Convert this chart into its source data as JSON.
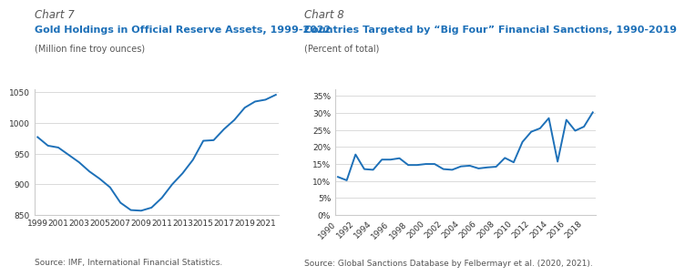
{
  "chart7": {
    "title_label": "Chart 7",
    "title": "Gold Holdings in Official Reserve Assets, 1999-2022",
    "subtitle": "(Million fine troy ounces)",
    "source": "Source: IMF, International Financial Statistics.",
    "line_color": "#1d70b8",
    "years": [
      1999,
      2000,
      2001,
      2002,
      2003,
      2004,
      2005,
      2006,
      2007,
      2008,
      2009,
      2010,
      2011,
      2012,
      2013,
      2014,
      2015,
      2016,
      2017,
      2018,
      2019,
      2020,
      2021,
      2022
    ],
    "values": [
      977,
      963,
      960,
      948,
      936,
      921,
      909,
      895,
      870,
      858,
      857,
      862,
      878,
      900,
      918,
      940,
      971,
      972,
      990,
      1005,
      1025,
      1035,
      1038,
      1046
    ],
    "ylim": [
      850,
      1055
    ],
    "yticks": [
      850,
      900,
      950,
      1000,
      1050
    ],
    "xtick_years": [
      1999,
      2001,
      2003,
      2005,
      2007,
      2009,
      2011,
      2013,
      2015,
      2017,
      2019,
      2021
    ]
  },
  "chart8": {
    "title_label": "Chart 8",
    "title": "Countries Targeted by “Big Four” Financial Sanctions, 1990-2019",
    "subtitle": "(Percent of total)",
    "source": "Source: Global Sanctions Database by Felbermayr et al. (2020, 2021).",
    "line_color": "#1d70b8",
    "years": [
      1990,
      1991,
      1992,
      1993,
      1994,
      1995,
      1996,
      1997,
      1998,
      1999,
      2000,
      2001,
      2002,
      2003,
      2004,
      2005,
      2006,
      2007,
      2008,
      2009,
      2010,
      2011,
      2012,
      2013,
      2014,
      2015,
      2016,
      2017,
      2018,
      2019
    ],
    "values": [
      0.112,
      0.102,
      0.178,
      0.135,
      0.133,
      0.163,
      0.163,
      0.167,
      0.147,
      0.147,
      0.15,
      0.15,
      0.135,
      0.133,
      0.143,
      0.145,
      0.137,
      0.14,
      0.142,
      0.168,
      0.155,
      0.215,
      0.245,
      0.255,
      0.285,
      0.157,
      0.28,
      0.248,
      0.26,
      0.302
    ],
    "ylim": [
      0,
      0.37
    ],
    "yticks": [
      0.0,
      0.05,
      0.1,
      0.15,
      0.2,
      0.25,
      0.3,
      0.35
    ],
    "ytick_labels": [
      "0%",
      "5%",
      "10%",
      "15%",
      "20%",
      "25%",
      "30%",
      "35%"
    ],
    "xtick_years": [
      1990,
      1992,
      1994,
      1996,
      1998,
      2000,
      2002,
      2004,
      2006,
      2008,
      2010,
      2012,
      2014,
      2016,
      2018
    ]
  },
  "bg_color": "#ffffff",
  "title_label_color": "#555555",
  "chart_title_color": "#1d70b8",
  "subtitle_color": "#555555",
  "source_color": "#555555",
  "axis_color": "#cccccc",
  "tick_color": "#333333",
  "title_label_fontsize": 8.5,
  "chart_title_fontsize": 8.0,
  "subtitle_fontsize": 7.0,
  "source_fontsize": 6.5,
  "tick_fontsize": 6.5,
  "linewidth": 1.4
}
